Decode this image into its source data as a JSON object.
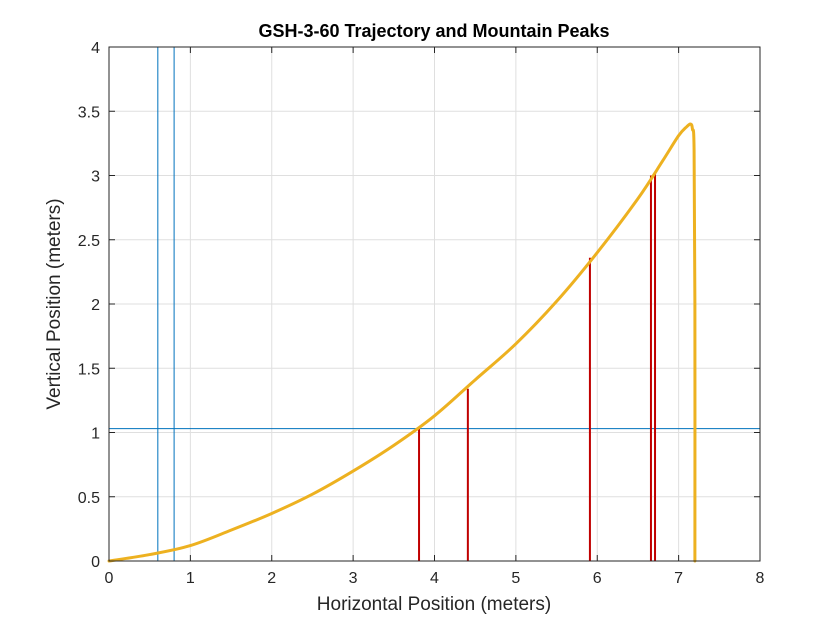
{
  "chart_data": {
    "type": "line",
    "title": "GSH-3-60 Trajectory and Mountain Peaks",
    "xlabel": "Horizontal Position (meters)",
    "ylabel": "Vertical Position (meters)",
    "xlim": [
      0,
      8
    ],
    "ylim": [
      0,
      4
    ],
    "xticks": [
      0,
      1,
      2,
      3,
      4,
      5,
      6,
      7,
      8
    ],
    "yticks": [
      0,
      0.5,
      1,
      1.5,
      2,
      2.5,
      3,
      3.5,
      4
    ],
    "grid": true,
    "series": [
      {
        "role": "trajectory",
        "color": "#EDB120",
        "x": [
          0,
          0.5,
          1,
          1.5,
          2,
          2.5,
          3,
          3.5,
          4,
          4.5,
          5,
          5.5,
          6,
          6.5,
          6.8,
          7.0,
          7.1,
          7.15,
          7.17,
          7.19,
          7.2,
          7.2
        ],
        "y": [
          0,
          0.05,
          0.12,
          0.24,
          0.37,
          0.52,
          0.7,
          0.9,
          1.13,
          1.41,
          1.69,
          2.02,
          2.4,
          2.82,
          3.11,
          3.31,
          3.38,
          3.4,
          3.36,
          3.2,
          2.0,
          0
        ]
      },
      {
        "role": "mountain-peaks",
        "color": "#C00000",
        "peaks": [
          {
            "x": 3.81,
            "y": 1.03
          },
          {
            "x": 4.41,
            "y": 1.34
          },
          {
            "x": 5.91,
            "y": 2.36
          },
          {
            "x": 6.66,
            "y": 3.0
          },
          {
            "x": 6.71,
            "y": 3.02
          }
        ]
      },
      {
        "role": "reference-lines",
        "color": "#0072BD",
        "vertical_x": [
          0.6,
          0.8
        ],
        "horizontal_y": [
          1.03
        ]
      }
    ]
  }
}
